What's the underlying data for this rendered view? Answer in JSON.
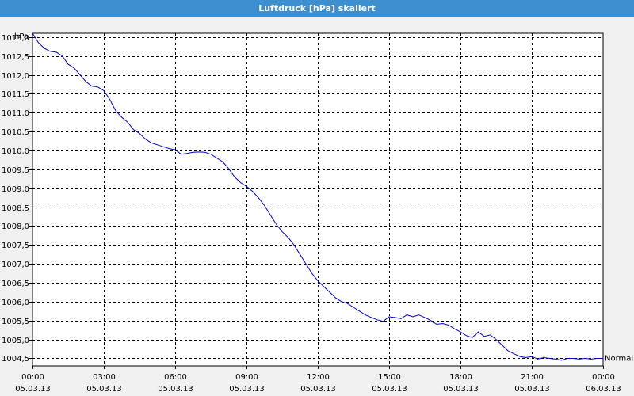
{
  "window": {
    "title": "Luftdruck [hPa] skaliert"
  },
  "chart_data": {
    "type": "line",
    "title": "Luftdruck [hPa] skaliert",
    "y_unit": "hPa",
    "ylim": [
      1004.3,
      1013.1
    ],
    "y_ticks": [
      "1004,5",
      "1005,0",
      "1005,5",
      "1006,0",
      "1006,5",
      "1007,0",
      "1007,5",
      "1008,0",
      "1008,5",
      "1009,0",
      "1009,5",
      "1010,0",
      "1010,5",
      "1011,0",
      "1011,5",
      "1012,0",
      "1012,5",
      "1013,0"
    ],
    "y_tick_values": [
      1004.5,
      1005.0,
      1005.5,
      1006.0,
      1006.5,
      1007.0,
      1007.5,
      1008.0,
      1008.5,
      1009.0,
      1009.5,
      1010.0,
      1010.5,
      1011.0,
      1011.5,
      1012.0,
      1012.5,
      1013.0
    ],
    "xlim_hours": [
      0,
      24
    ],
    "x_ticks": [
      {
        "hour": 0,
        "time": "00:00",
        "date": "05.03.13"
      },
      {
        "hour": 3,
        "time": "03:00",
        "date": "05.03.13"
      },
      {
        "hour": 6,
        "time": "06:00",
        "date": "05.03.13"
      },
      {
        "hour": 9,
        "time": "09:00",
        "date": "05.03.13"
      },
      {
        "hour": 12,
        "time": "12:00",
        "date": "05.03.13"
      },
      {
        "hour": 15,
        "time": "15:00",
        "date": "05.03.13"
      },
      {
        "hour": 18,
        "time": "18:00",
        "date": "05.03.13"
      },
      {
        "hour": 21,
        "time": "21:00",
        "date": "05.03.13"
      },
      {
        "hour": 24,
        "time": "00:00",
        "date": "06.03.13"
      }
    ],
    "grid": true,
    "series": [
      {
        "name": "Normal",
        "color": "#0000cc",
        "x_hours": [
          0,
          0.25,
          0.5,
          0.75,
          1.0,
          1.25,
          1.5,
          1.75,
          2.0,
          2.25,
          2.5,
          2.75,
          3.0,
          3.25,
          3.5,
          3.75,
          4.0,
          4.25,
          4.5,
          4.75,
          5.0,
          5.25,
          5.5,
          5.75,
          6.0,
          6.25,
          6.5,
          6.75,
          7.0,
          7.25,
          7.5,
          7.75,
          8.0,
          8.25,
          8.5,
          8.75,
          9.0,
          9.25,
          9.5,
          9.75,
          10.0,
          10.25,
          10.5,
          10.75,
          11.0,
          11.25,
          11.5,
          11.75,
          12.0,
          12.25,
          12.5,
          12.75,
          13.0,
          13.25,
          13.5,
          13.75,
          14.0,
          14.25,
          14.5,
          14.75,
          15.0,
          15.25,
          15.5,
          15.75,
          16.0,
          16.25,
          16.5,
          16.75,
          17.0,
          17.25,
          17.5,
          17.75,
          18.0,
          18.25,
          18.5,
          18.75,
          19.0,
          19.25,
          19.5,
          19.75,
          20.0,
          20.25,
          20.5,
          20.75,
          21.0,
          21.25,
          21.5,
          21.75,
          22.0,
          22.25,
          22.5,
          22.75,
          23.0,
          23.25,
          23.5,
          23.75,
          24.0
        ],
        "values": [
          1013.1,
          1012.85,
          1012.7,
          1012.62,
          1012.6,
          1012.5,
          1012.28,
          1012.18,
          1012.0,
          1011.82,
          1011.7,
          1011.68,
          1011.58,
          1011.35,
          1011.05,
          1010.88,
          1010.75,
          1010.55,
          1010.45,
          1010.3,
          1010.2,
          1010.15,
          1010.1,
          1010.05,
          1010.02,
          1009.9,
          1009.92,
          1009.95,
          1009.96,
          1009.95,
          1009.9,
          1009.8,
          1009.7,
          1009.52,
          1009.3,
          1009.15,
          1009.05,
          1008.92,
          1008.75,
          1008.55,
          1008.3,
          1008.05,
          1007.85,
          1007.7,
          1007.5,
          1007.25,
          1007.0,
          1006.75,
          1006.55,
          1006.4,
          1006.25,
          1006.1,
          1006.0,
          1005.95,
          1005.85,
          1005.75,
          1005.65,
          1005.58,
          1005.52,
          1005.48,
          1005.6,
          1005.58,
          1005.55,
          1005.65,
          1005.6,
          1005.65,
          1005.58,
          1005.5,
          1005.4,
          1005.42,
          1005.38,
          1005.28,
          1005.2,
          1005.1,
          1005.05,
          1005.2,
          1005.08,
          1005.12,
          1005.0,
          1004.85,
          1004.7,
          1004.62,
          1004.55,
          1004.52,
          1004.55,
          1004.48,
          1004.52,
          1004.5,
          1004.48,
          1004.45,
          1004.5,
          1004.5,
          1004.48,
          1004.5,
          1004.48,
          1004.5,
          1004.5
        ]
      }
    ]
  }
}
